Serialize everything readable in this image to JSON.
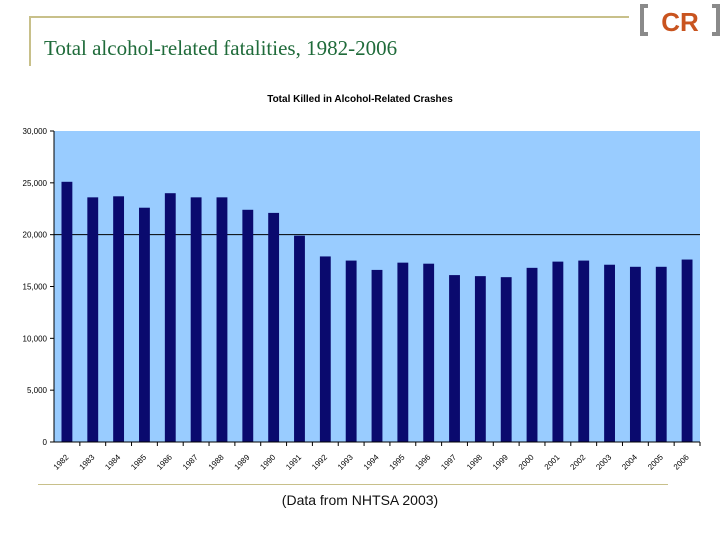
{
  "slide": {
    "title": "Total alcohol-related fatalities, 1982-2006",
    "source_note": "(Data from NHTSA 2003)",
    "logo_text": "CR"
  },
  "colors": {
    "bar": "#0a0a6e",
    "plot_bg": "#99ccff",
    "title": "#1f6b3a",
    "logo": "#c9541f",
    "frame": "#c8c08a"
  },
  "chart_data": {
    "type": "bar",
    "title": "Total Killed in Alcohol-Related Crashes",
    "xlabel": "",
    "ylabel": "",
    "ylim": [
      0,
      30000
    ],
    "yticks": [
      0,
      5000,
      10000,
      15000,
      20000,
      25000,
      30000
    ],
    "ytick_labels": [
      "0",
      "5,000",
      "10,000",
      "15,000",
      "20,000",
      "25,000",
      "30,000"
    ],
    "gridlines": [
      20000
    ],
    "categories": [
      "1982",
      "1983",
      "1984",
      "1985",
      "1986",
      "1987",
      "1988",
      "1989",
      "1990",
      "1991",
      "1992",
      "1993",
      "1994",
      "1995",
      "1996",
      "1997",
      "1998",
      "1999",
      "2000",
      "2001",
      "2002",
      "2003",
      "2004",
      "2005",
      "2006"
    ],
    "values": [
      25100,
      23600,
      23700,
      22600,
      24000,
      23600,
      23600,
      22400,
      22100,
      19900,
      17900,
      17500,
      16600,
      17300,
      17200,
      16100,
      16000,
      15900,
      16800,
      17400,
      17500,
      17100,
      16900,
      16900,
      17600
    ]
  }
}
